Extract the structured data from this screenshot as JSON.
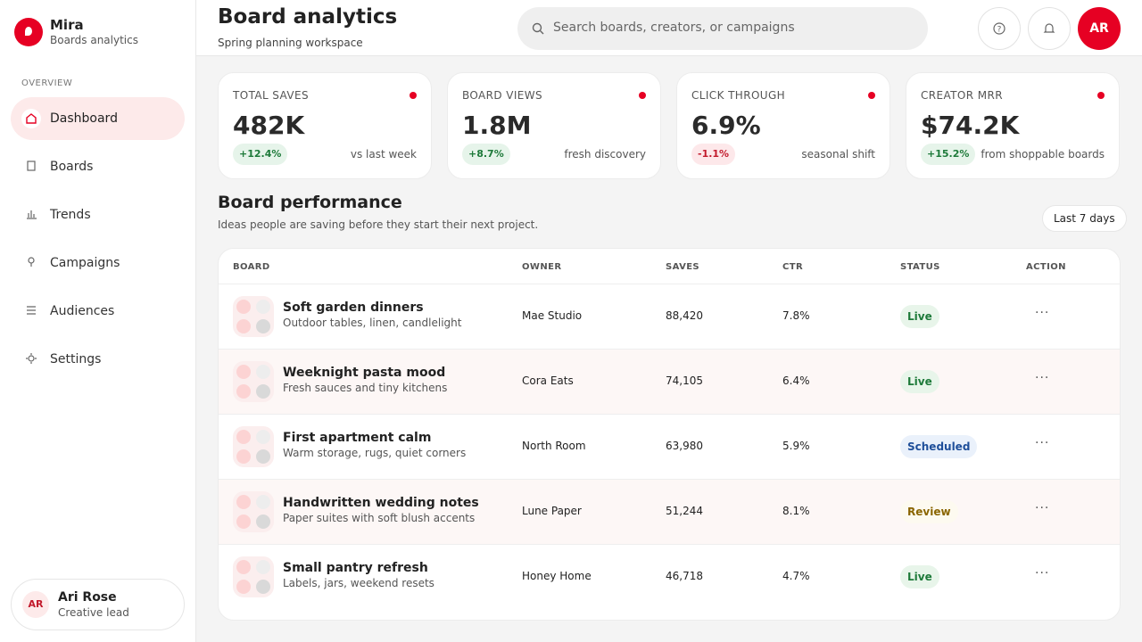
{
  "app": {
    "name": "Mira",
    "subtitle": "Boards analytics"
  },
  "nav": {
    "section": "OVERVIEW",
    "items": [
      "Dashboard",
      "Boards",
      "Trends",
      "Campaigns",
      "Audiences",
      "Settings"
    ]
  },
  "user": {
    "initials": "AR",
    "name": "Ari Rose",
    "role": "Creative lead"
  },
  "header": {
    "title": "Board analytics",
    "subtitle": "Spring planning workspace",
    "search_placeholder": "Search boards, creators, or campaigns",
    "avatar": "AR"
  },
  "kpis": [
    {
      "label": "TOTAL SAVES",
      "value": "482K",
      "change": "+12.4%",
      "note": "vs last week"
    },
    {
      "label": "BOARD VIEWS",
      "value": "1.8M",
      "change": "+8.7%",
      "note": "fresh discovery"
    },
    {
      "label": "CLICK THROUGH",
      "value": "6.9%",
      "change": "-1.1%",
      "note": "seasonal shift"
    },
    {
      "label": "CREATOR MRR",
      "value": "$74.2K",
      "change": "+15.2%",
      "note": "from shoppable boards"
    }
  ],
  "section": {
    "title": "Board performance",
    "subtitle": "Ideas people are saving before they start their next project.",
    "range": "Last 7 days"
  },
  "table": {
    "columns": [
      "BOARD",
      "OWNER",
      "SAVES",
      "CTR",
      "STATUS",
      "ACTION"
    ],
    "rows": [
      {
        "title": "Soft garden dinners",
        "description": "Outdoor tables, linen, candlelight",
        "owner": "Mae Studio",
        "saves": "88,420",
        "ctr": "7.8%",
        "status": "Live"
      },
      {
        "title": "Weeknight pasta mood",
        "description": "Fresh sauces and tiny kitchens",
        "owner": "Cora Eats",
        "saves": "74,105",
        "ctr": "6.4%",
        "status": "Live"
      },
      {
        "title": "First apartment calm",
        "description": "Warm storage, rugs, quiet corners",
        "owner": "North Room",
        "saves": "63,980",
        "ctr": "5.9%",
        "status": "Scheduled"
      },
      {
        "title": "Handwritten wedding notes",
        "description": "Paper suites with soft blush accents",
        "owner": "Lune Paper",
        "saves": "51,244",
        "ctr": "8.1%",
        "status": "Review"
      },
      {
        "title": "Small pantry refresh",
        "description": "Labels, jars, weekend resets",
        "owner": "Honey Home",
        "saves": "46,718",
        "ctr": "4.7%",
        "status": "Live"
      }
    ]
  }
}
